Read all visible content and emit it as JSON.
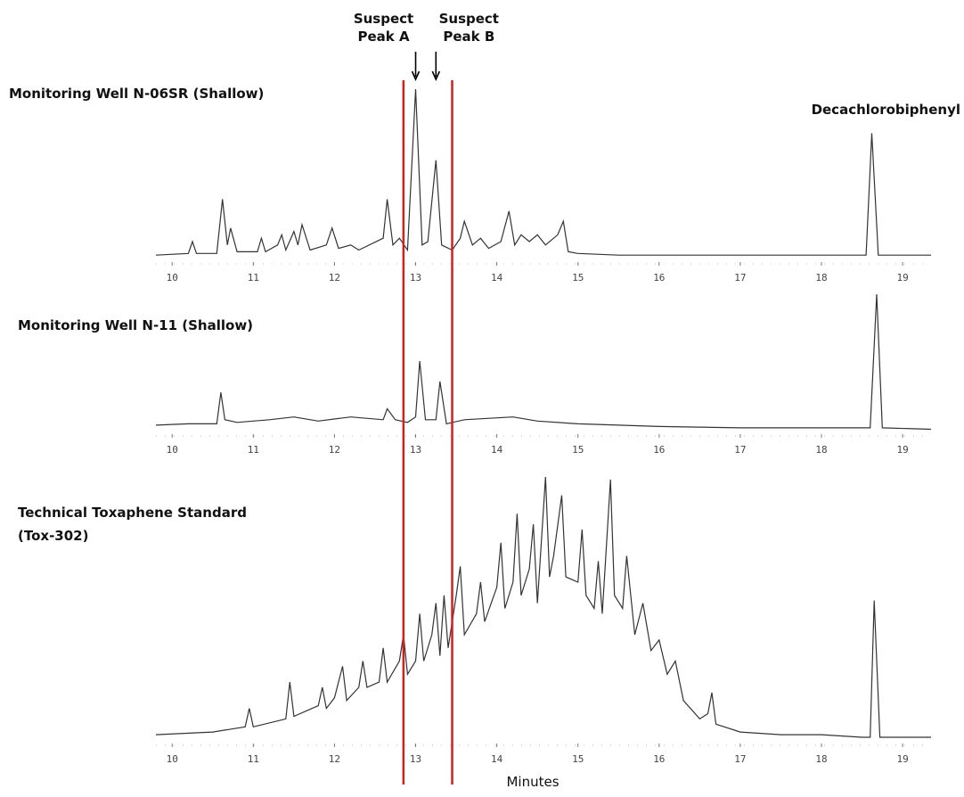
{
  "chart_data": [
    {
      "type": "line",
      "title": [
        "Monitoring Well N-06SR (Shallow)"
      ],
      "peak_label": "Decachlorobiphenyl",
      "color": "#333333",
      "xlim": [
        9.8,
        19.35
      ],
      "ylim": [
        0,
        100
      ],
      "xticks": [
        10,
        11,
        12,
        13,
        14,
        15,
        16,
        17,
        18,
        19
      ],
      "x": [
        9.8,
        10.2,
        10.25,
        10.3,
        10.55,
        10.62,
        10.68,
        10.72,
        10.8,
        11.05,
        11.1,
        11.15,
        11.3,
        11.35,
        11.4,
        11.5,
        11.55,
        11.6,
        11.7,
        11.9,
        11.97,
        12.05,
        12.2,
        12.3,
        12.6,
        12.65,
        12.72,
        12.8,
        12.9,
        13.0,
        13.08,
        13.15,
        13.25,
        13.32,
        13.45,
        13.55,
        13.6,
        13.7,
        13.8,
        13.9,
        14.05,
        14.15,
        14.22,
        14.3,
        14.4,
        14.5,
        14.6,
        14.75,
        14.82,
        14.88,
        15.0,
        15.5,
        16,
        17,
        18,
        18.55,
        18.62,
        18.7,
        19.35
      ],
      "values": [
        2,
        3,
        10,
        3,
        3,
        35,
        8,
        18,
        4,
        4,
        12,
        4,
        8,
        14,
        5,
        16,
        8,
        20,
        5,
        8,
        18,
        6,
        8,
        5,
        12,
        35,
        8,
        12,
        5,
        100,
        8,
        10,
        58,
        8,
        5,
        12,
        22,
        8,
        12,
        6,
        10,
        28,
        8,
        14,
        10,
        14,
        8,
        14,
        22,
        4,
        3,
        2,
        2,
        2,
        2,
        2,
        74,
        2,
        2
      ]
    },
    {
      "type": "line",
      "title": [
        "Monitoring Well N-11 (Shallow)"
      ],
      "color": "#333333",
      "xlim": [
        9.8,
        19.35
      ],
      "ylim": [
        0,
        100
      ],
      "xticks": [
        10,
        11,
        12,
        13,
        14,
        15,
        16,
        17,
        18,
        19
      ],
      "x": [
        9.8,
        10.2,
        10.55,
        10.6,
        10.65,
        10.8,
        11.2,
        11.5,
        11.8,
        12.2,
        12.6,
        12.65,
        12.75,
        12.9,
        13.0,
        13.05,
        13.12,
        13.25,
        13.3,
        13.38,
        13.6,
        14.2,
        14.5,
        15,
        16,
        17,
        18,
        18.6,
        18.68,
        18.75,
        19.35
      ],
      "values": [
        4,
        5,
        5,
        28,
        8,
        6,
        8,
        10,
        7,
        10,
        8,
        16,
        8,
        6,
        10,
        51,
        8,
        8,
        36,
        5,
        8,
        10,
        7,
        5,
        3,
        2,
        2,
        2,
        100,
        2,
        1
      ]
    },
    {
      "type": "line",
      "title": [
        "Technical Toxaphene Standard",
        "(Tox-302)"
      ],
      "xlabel": "Minutes",
      "color": "#333333",
      "xlim": [
        9.8,
        19.35
      ],
      "ylim": [
        0,
        100
      ],
      "xticks": [
        10,
        11,
        12,
        13,
        14,
        15,
        16,
        17,
        18,
        19
      ],
      "x": [
        9.8,
        10.5,
        10.9,
        10.95,
        11.0,
        11.4,
        11.45,
        11.5,
        11.8,
        11.85,
        11.9,
        12.0,
        12.1,
        12.15,
        12.3,
        12.35,
        12.4,
        12.55,
        12.6,
        12.65,
        12.8,
        12.85,
        12.9,
        13.0,
        13.05,
        13.1,
        13.2,
        13.25,
        13.3,
        13.35,
        13.4,
        13.5,
        13.55,
        13.6,
        13.75,
        13.8,
        13.85,
        14.0,
        14.05,
        14.1,
        14.2,
        14.25,
        14.3,
        14.4,
        14.45,
        14.5,
        14.6,
        14.65,
        14.7,
        14.8,
        14.85,
        15.0,
        15.05,
        15.1,
        15.2,
        15.25,
        15.3,
        15.4,
        15.45,
        15.55,
        15.6,
        15.7,
        15.8,
        15.9,
        16.0,
        16.1,
        16.2,
        16.3,
        16.5,
        16.6,
        16.65,
        16.7,
        17.0,
        17.5,
        18.0,
        18.5,
        18.6,
        18.65,
        18.72,
        19.35
      ],
      "values": [
        2,
        3,
        5,
        12,
        5,
        8,
        22,
        9,
        13,
        20,
        12,
        16,
        28,
        15,
        20,
        30,
        20,
        22,
        35,
        22,
        30,
        40,
        25,
        30,
        48,
        30,
        40,
        52,
        32,
        55,
        35,
        55,
        66,
        40,
        48,
        60,
        45,
        58,
        75,
        50,
        60,
        86,
        55,
        65,
        82,
        52,
        100,
        62,
        70,
        93,
        62,
        60,
        80,
        55,
        50,
        68,
        48,
        99,
        55,
        50,
        70,
        40,
        52,
        34,
        38,
        25,
        30,
        15,
        8,
        10,
        18,
        6,
        3,
        2,
        2,
        1,
        1,
        53,
        1,
        1
      ]
    }
  ],
  "annotations": [
    {
      "text": [
        "Suspect",
        "Peak A"
      ],
      "x": 13.0
    },
    {
      "text": [
        "Suspect",
        "Peak B"
      ],
      "x": 13.25
    }
  ],
  "highlight_region": {
    "color": "#cc2222",
    "x": [
      12.85,
      13.45
    ]
  }
}
